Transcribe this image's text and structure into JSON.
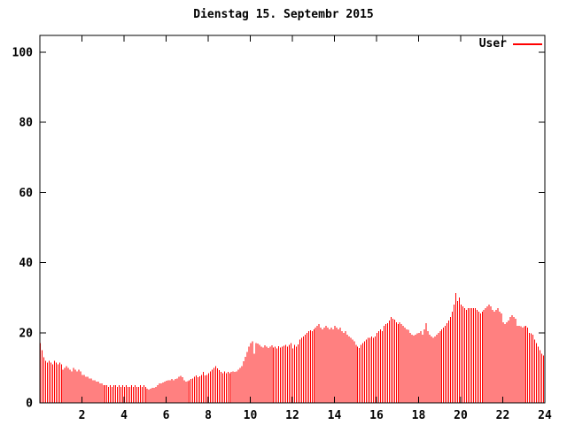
{
  "title": "Dienstag 15. Septembr 2015",
  "legend": {
    "label": "User",
    "color": "#ff0000"
  },
  "chart_data": {
    "type": "bar",
    "title": "Dienstag 15. Septembr 2015",
    "xlabel": "",
    "ylabel": "",
    "xlim": [
      0,
      24
    ],
    "ylim": [
      0,
      100
    ],
    "x_ticks": [
      2,
      4,
      6,
      8,
      10,
      12,
      14,
      16,
      18,
      20,
      22,
      24
    ],
    "y_ticks": [
      0,
      20,
      40,
      60,
      80,
      100
    ],
    "interval_minutes": 5,
    "grid": false,
    "legend_position": "top-right",
    "bar_color": "#ff0000",
    "axis_color": "#000000",
    "series": [
      {
        "name": "User",
        "color": "#ff0000",
        "values": [
          17,
          15,
          13,
          12,
          11.5,
          12,
          11.5,
          11,
          12,
          11.5,
          11,
          11.5,
          11,
          9.5,
          10,
          10.5,
          10,
          9.5,
          9,
          10,
          9.5,
          9,
          9.5,
          9,
          8,
          8,
          7.5,
          7.5,
          7,
          7,
          6.5,
          6.5,
          6,
          6,
          5.5,
          5.5,
          5,
          5,
          5,
          4.5,
          5,
          4.5,
          5,
          5,
          4.5,
          5,
          4.5,
          5,
          4.5,
          5,
          4.5,
          4.5,
          5,
          4.5,
          5,
          4.5,
          4.5,
          5,
          4.5,
          5,
          4.5,
          4,
          3.8,
          4,
          4.3,
          4.3,
          4.5,
          5,
          5.5,
          5.5,
          5.8,
          6,
          6.3,
          6.5,
          6.5,
          6.8,
          6.5,
          6.8,
          7,
          7.5,
          7.7,
          7.3,
          6.5,
          6,
          6.2,
          6.5,
          6.8,
          7,
          7.5,
          7.8,
          7.3,
          7.6,
          8,
          8.8,
          7.8,
          8,
          8.5,
          9,
          9.5,
          10,
          10.5,
          9.8,
          9.3,
          8.8,
          8.5,
          9,
          8.5,
          8.8,
          8.5,
          8.8,
          9,
          8.8,
          9,
          9.5,
          10,
          10.5,
          11.9,
          13.1,
          14.5,
          16,
          17,
          17.5,
          14,
          17,
          16.9,
          16.5,
          16,
          15.8,
          16.4,
          16,
          15.6,
          16,
          16.4,
          15.8,
          16,
          15.5,
          16.2,
          15.8,
          16,
          16.3,
          16.5,
          16,
          16.5,
          17,
          15.5,
          16.5,
          16,
          16.7,
          18,
          18.5,
          19,
          19.5,
          20,
          20.5,
          20.7,
          20.5,
          21,
          21.5,
          22,
          22.5,
          21.5,
          21,
          21.5,
          22,
          21.5,
          21,
          21.5,
          21,
          22,
          21.5,
          21,
          21.5,
          20.5,
          20,
          20.5,
          19.5,
          19,
          18.5,
          18,
          17.5,
          16.5,
          16,
          15.6,
          16.5,
          17,
          17.5,
          18,
          18.5,
          18.5,
          19,
          18.5,
          19,
          20,
          20.5,
          21,
          20.5,
          22,
          22.5,
          22.7,
          23.5,
          24.5,
          24,
          23.7,
          23,
          22.5,
          23,
          22.5,
          22,
          21.5,
          21,
          20.8,
          20,
          19.5,
          19.2,
          19.5,
          19.8,
          20,
          20.5,
          19.5,
          21,
          22.7,
          20.5,
          19.5,
          19,
          18.5,
          19,
          19.5,
          20,
          20.5,
          21,
          21.5,
          22,
          22.7,
          23.5,
          24.5,
          26,
          28,
          31.3,
          29,
          30,
          28,
          27.5,
          27,
          26.5,
          27,
          27,
          27,
          27,
          27,
          26.5,
          26,
          25.5,
          26,
          26.5,
          27,
          27.5,
          28,
          27.5,
          26.5,
          26,
          26.5,
          27,
          26,
          25.5,
          23,
          22.5,
          23,
          23.5,
          24.5,
          25,
          24.5,
          24,
          22,
          22,
          21.8,
          21.5,
          21.8,
          22,
          21.5,
          20,
          19.8,
          19.5,
          18,
          17,
          16,
          15,
          14,
          13.5
        ]
      }
    ]
  }
}
